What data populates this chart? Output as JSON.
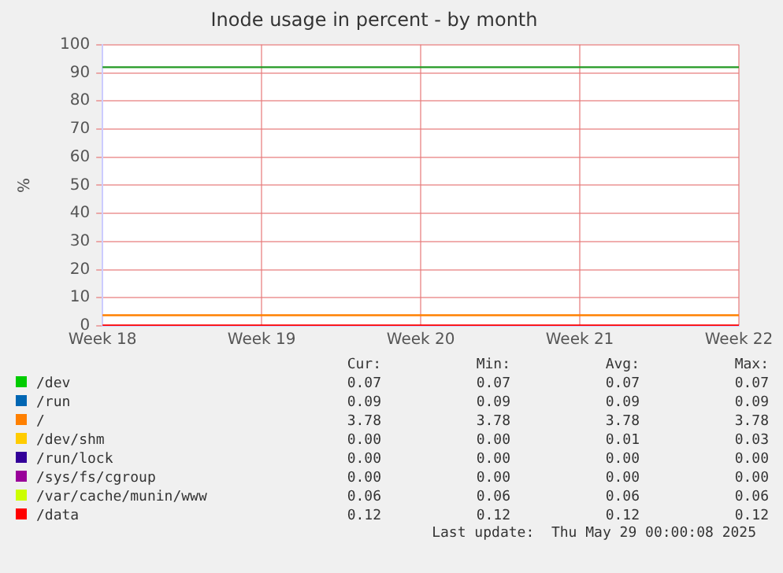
{
  "chart_data": {
    "type": "line",
    "title": "Inode usage in percent - by month",
    "ylabel": "%",
    "categories": [
      "Week 18",
      "Week 19",
      "Week 20",
      "Week 21",
      "Week 22"
    ],
    "ylim": [
      0,
      100
    ],
    "yticks": [
      0,
      10,
      20,
      30,
      40,
      50,
      60,
      70,
      80,
      90,
      100
    ],
    "grid": true,
    "legend": "bottom",
    "marker": "none",
    "line_style": "solid",
    "ref_lines": [
      {
        "axis": "y",
        "value": 92,
        "color": "#229922"
      }
    ],
    "series": [
      {
        "name": "/dev",
        "color": "#00cc00",
        "values": [
          null,
          null,
          null,
          null,
          null
        ]
      },
      {
        "name": "/run",
        "color": "#0066b3",
        "values": [
          null,
          null,
          null,
          null,
          null
        ]
      },
      {
        "name": "/",
        "color": "#ff8000",
        "values": [
          3.78,
          3.78,
          3.78,
          3.78,
          3.78
        ]
      },
      {
        "name": "/dev/shm",
        "color": "#ffcc00",
        "values": [
          null,
          null,
          null,
          null,
          null
        ]
      },
      {
        "name": "/run/lock",
        "color": "#330099",
        "values": [
          null,
          null,
          null,
          null,
          null
        ]
      },
      {
        "name": "/sys/fs/cgroup",
        "color": "#990099",
        "values": [
          null,
          null,
          null,
          null,
          null
        ]
      },
      {
        "name": "/var/cache/munin/www",
        "color": "#ccff00",
        "values": [
          null,
          null,
          null,
          null,
          null
        ]
      },
      {
        "name": "/data",
        "color": "#ff0000",
        "values": [
          0.12,
          0.12,
          0.12,
          0.12,
          0.12
        ]
      }
    ],
    "annotations": [
      "Cur:",
      "Min:",
      "Avg:",
      "Max:",
      "0.07",
      "0.07",
      "0.07",
      "0.07",
      "0.09",
      "0.09",
      "0.09",
      "0.09",
      "3.78",
      "3.78",
      "3.78",
      "3.78",
      "0.00",
      "0.00",
      "0.01",
      "0.03",
      "0.00",
      "0.00",
      "0.00",
      "0.00",
      "0.00",
      "0.00",
      "0.00",
      "0.00",
      "0.06",
      "0.06",
      "0.06",
      "0.06",
      "0.12",
      "0.12",
      "0.12",
      "0.12",
      "Last update:  Thu May 29 00:00:08 2025"
    ]
  }
}
